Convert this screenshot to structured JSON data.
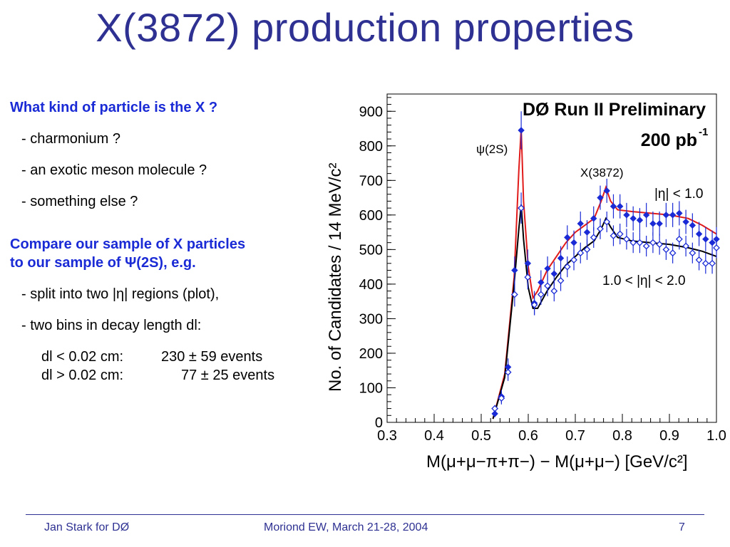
{
  "title": "X(3872) production properties",
  "left": {
    "q_heading": "What kind of particle is the X ?",
    "q_items": [
      "- charmonium ?",
      "- an exotic meson molecule ?",
      "- something else ?"
    ],
    "cmp_line1": "Compare our sample of X particles",
    "cmp_line2": "to our sample of Ψ(2S), e.g.",
    "split": "- split into two |η| regions (plot),",
    "bins": "- two bins in decay length dl:",
    "dl1_label": "dl < 0.02 cm:",
    "dl1_value": "230 ± 59 events",
    "dl2_label": "dl > 0.02 cm:",
    "dl2_value": "77 ± 25 events"
  },
  "footer": {
    "left": "Jan Stark for DØ",
    "center": "Moriond EW, March 21-28, 2004",
    "page": "7"
  },
  "chart_data": {
    "type": "scatter",
    "title": "DØ Run II Preliminary",
    "lumi": "200 pb",
    "lumi_sup": "-1",
    "xlabel": "M(μ+μ−π+π−) − M(μ+μ−) [GeV/c²]",
    "ylabel": "No. of Candidates / 14 MeV/c²",
    "xlim": [
      0.3,
      1.0
    ],
    "ylim": [
      0,
      950
    ],
    "xticks": [
      "0.3",
      "0.4",
      "0.5",
      "0.6",
      "0.7",
      "0.8",
      "0.9",
      "1.0"
    ],
    "yticks": [
      "0",
      "100",
      "200",
      "300",
      "400",
      "500",
      "600",
      "700",
      "800",
      "900"
    ],
    "annotations": {
      "psi": "ψ(2S)",
      "x3872": "X(3872)",
      "eta_low": "|η| < 1.0",
      "eta_high": "1.0 < |η| < 2.0"
    },
    "colors": {
      "red_fit": "#e11a1a",
      "black_fit": "#000000",
      "points": "#1a2bd6"
    },
    "series": [
      {
        "marker": "filled",
        "x": [
          0.529,
          0.543,
          0.557,
          0.571,
          0.585,
          0.599,
          0.613,
          0.627,
          0.641,
          0.655,
          0.669,
          0.683,
          0.697,
          0.711,
          0.725,
          0.739,
          0.753,
          0.767,
          0.781,
          0.795,
          0.809,
          0.823,
          0.837,
          0.851,
          0.865,
          0.879,
          0.893,
          0.907,
          0.921,
          0.935,
          0.949,
          0.963,
          0.977,
          0.991,
          1.0
        ],
        "y": [
          25,
          75,
          160,
          440,
          845,
          460,
          345,
          405,
          445,
          430,
          475,
          535,
          520,
          575,
          550,
          590,
          650,
          670,
          625,
          625,
          600,
          590,
          585,
          600,
          575,
          575,
          600,
          600,
          605,
          580,
          570,
          545,
          530,
          520,
          530
        ],
        "err": [
          10,
          18,
          25,
          40,
          55,
          40,
          35,
          35,
          35,
          35,
          35,
          35,
          35,
          35,
          35,
          35,
          35,
          35,
          35,
          35,
          35,
          35,
          35,
          35,
          35,
          35,
          35,
          35,
          35,
          35,
          35,
          35,
          35,
          35,
          35
        ]
      },
      {
        "marker": "open",
        "x": [
          0.529,
          0.543,
          0.557,
          0.571,
          0.585,
          0.599,
          0.613,
          0.627,
          0.641,
          0.655,
          0.669,
          0.683,
          0.697,
          0.711,
          0.725,
          0.739,
          0.753,
          0.767,
          0.781,
          0.795,
          0.809,
          0.823,
          0.837,
          0.851,
          0.865,
          0.879,
          0.893,
          0.907,
          0.921,
          0.935,
          0.949,
          0.963,
          0.977,
          0.991,
          1.0
        ],
        "y": [
          40,
          70,
          145,
          370,
          620,
          420,
          340,
          370,
          395,
          380,
          410,
          450,
          470,
          490,
          500,
          535,
          560,
          580,
          540,
          545,
          530,
          520,
          520,
          510,
          520,
          515,
          500,
          490,
          530,
          510,
          490,
          470,
          460,
          460,
          505
        ],
        "err": [
          10,
          18,
          25,
          35,
          45,
          35,
          30,
          30,
          30,
          30,
          30,
          30,
          30,
          30,
          30,
          30,
          30,
          30,
          30,
          30,
          30,
          30,
          30,
          30,
          30,
          30,
          30,
          30,
          30,
          30,
          30,
          30,
          30,
          30,
          30
        ]
      }
    ],
    "fits": [
      {
        "name": "|η| < 1.0",
        "x": [
          0.525,
          0.55,
          0.57,
          0.58,
          0.585,
          0.59,
          0.6,
          0.61,
          0.62,
          0.64,
          0.66,
          0.68,
          0.7,
          0.72,
          0.74,
          0.755,
          0.765,
          0.775,
          0.79,
          0.82,
          0.86,
          0.9,
          0.94,
          0.97,
          1.0
        ],
        "y": [
          10,
          140,
          420,
          730,
          850,
          640,
          450,
          360,
          380,
          440,
          480,
          520,
          550,
          570,
          590,
          640,
          680,
          640,
          615,
          610,
          605,
          600,
          590,
          570,
          545
        ]
      },
      {
        "name": "1.0 < |η| < 2.0",
        "x": [
          0.525,
          0.55,
          0.57,
          0.58,
          0.585,
          0.59,
          0.6,
          0.61,
          0.62,
          0.64,
          0.66,
          0.68,
          0.7,
          0.72,
          0.74,
          0.755,
          0.765,
          0.775,
          0.79,
          0.82,
          0.86,
          0.9,
          0.94,
          0.97,
          1.0
        ],
        "y": [
          10,
          130,
          400,
          560,
          630,
          530,
          390,
          330,
          330,
          380,
          420,
          455,
          480,
          505,
          525,
          560,
          590,
          565,
          535,
          525,
          520,
          515,
          505,
          495,
          480
        ]
      }
    ]
  }
}
